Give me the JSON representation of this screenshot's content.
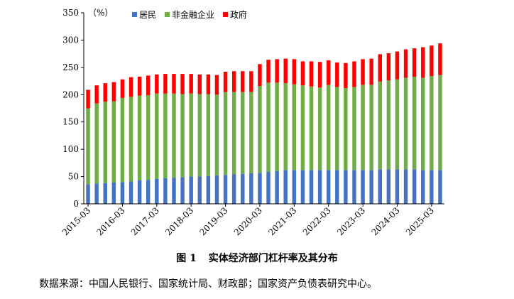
{
  "figure": {
    "number": "图 1",
    "title": "实体经济部门杠杆率及其分布",
    "source": "数据来源：中国人民银行、国家统计局、财政部；国家资产负债表研究中心。"
  },
  "chart_data": {
    "type": "bar",
    "stacked": true,
    "unit_label": "（%）",
    "ylim": [
      0,
      350
    ],
    "yticks": [
      0,
      50,
      100,
      150,
      200,
      250,
      300,
      350
    ],
    "legend_position": "top",
    "grid": false,
    "x_tick_labels": [
      "2015-03",
      "2016-03",
      "2017-03",
      "2018-03",
      "2019-03",
      "2020-03",
      "2021-03",
      "2022-03",
      "2023-03",
      "2024-03",
      "2025-03"
    ],
    "categories": [
      "2015-03",
      "2015-06",
      "2015-09",
      "2015-12",
      "2016-03",
      "2016-06",
      "2016-09",
      "2016-12",
      "2017-03",
      "2017-06",
      "2017-09",
      "2017-12",
      "2018-03",
      "2018-06",
      "2018-09",
      "2018-12",
      "2019-03",
      "2019-06",
      "2019-09",
      "2019-12",
      "2020-03",
      "2020-06",
      "2020-09",
      "2020-12",
      "2021-03",
      "2021-06",
      "2021-09",
      "2021-12",
      "2022-03",
      "2022-06",
      "2022-09",
      "2022-12",
      "2023-03",
      "2023-06",
      "2023-09",
      "2023-12",
      "2024-03",
      "2024-06",
      "2024-09",
      "2024-12",
      "2025-03",
      "2025-06"
    ],
    "series": [
      {
        "name": "居民",
        "color": "#4472C4",
        "values": [
          36,
          37,
          38,
          39,
          40,
          41,
          43,
          44,
          46,
          47,
          48,
          49,
          50,
          50,
          51,
          52,
          53,
          54,
          55,
          56,
          57,
          59,
          60,
          62,
          62,
          62,
          62,
          62,
          62,
          62,
          62,
          62,
          62,
          62,
          63,
          63,
          63,
          63,
          63,
          62,
          62,
          62
        ]
      },
      {
        "name": "非金融企业",
        "color": "#70AD47",
        "values": [
          139,
          147,
          149,
          149,
          154,
          155,
          155,
          155,
          156,
          155,
          154,
          152,
          152,
          151,
          150,
          148,
          152,
          151,
          150,
          149,
          159,
          163,
          162,
          159,
          157,
          155,
          153,
          151,
          156,
          152,
          150,
          152,
          156,
          156,
          161,
          163,
          165,
          168,
          170,
          169,
          172,
          174
        ]
      },
      {
        "name": "政府",
        "color": "#FF0000",
        "values": [
          34,
          33,
          34,
          35,
          34,
          36,
          35,
          36,
          35,
          36,
          36,
          37,
          36,
          36,
          36,
          36,
          37,
          38,
          38,
          38,
          40,
          42,
          43,
          45,
          46,
          44,
          46,
          47,
          45,
          45,
          46,
          47,
          47,
          48,
          50,
          50,
          51,
          52,
          52,
          56,
          56,
          58
        ]
      }
    ]
  }
}
